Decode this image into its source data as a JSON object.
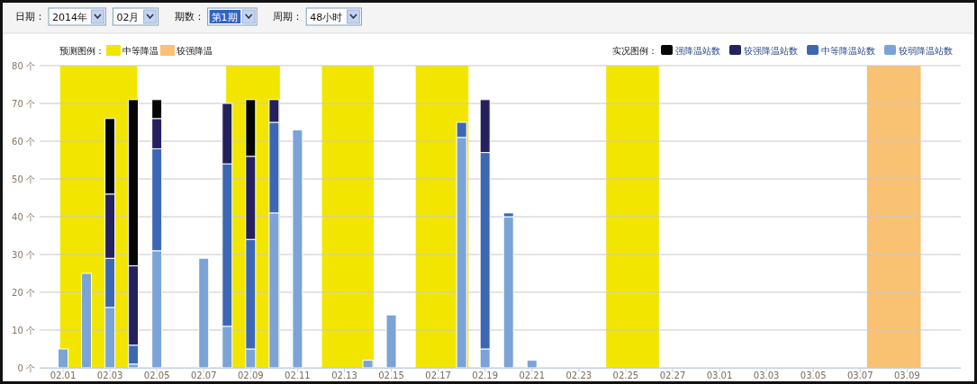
{
  "chart_data": {
    "type": "bar",
    "stacked": true,
    "x": [
      "2014-02-01",
      "2014-02-02",
      "2014-02-03",
      "2014-02-04",
      "2014-02-05",
      "2014-02-07",
      "2014-02-08",
      "2014-02-09",
      "2014-02-10",
      "2014-02-11",
      "2014-02-14",
      "2014-02-15",
      "2014-02-18",
      "2014-02-19",
      "2014-02-20",
      "2014-02-21"
    ],
    "series": [
      {
        "name": "较弱降温站数",
        "color": "#7ba3d6",
        "values": [
          5,
          25,
          16,
          1,
          31,
          29,
          11,
          5,
          41,
          63,
          2,
          14,
          61,
          5,
          40,
          2
        ]
      },
      {
        "name": "中等降温站数",
        "color": "#3c68b3",
        "values": [
          null,
          null,
          13,
          5,
          27,
          null,
          43,
          29,
          24,
          null,
          null,
          null,
          4,
          52,
          1,
          null
        ]
      },
      {
        "name": "较强降温站数",
        "color": "#24215e",
        "values": [
          null,
          null,
          17,
          21,
          8,
          null,
          16,
          22,
          6,
          null,
          null,
          null,
          null,
          14,
          null,
          null
        ]
      },
      {
        "name": "强降温站数",
        "color": "#030603",
        "values": [
          null,
          null,
          20,
          44,
          5,
          null,
          null,
          15,
          null,
          null,
          null,
          null,
          null,
          null,
          null,
          null
        ]
      }
    ],
    "xlim": [
      "2014-01-31",
      "2014-03-11T07:00"
    ],
    "xticks": [
      {
        "value": "2014-02-01",
        "label": "02.01"
      },
      {
        "value": "2014-02-03",
        "label": "02.03"
      },
      {
        "value": "2014-02-05",
        "label": "02.05"
      },
      {
        "value": "2014-02-07",
        "label": "02.07"
      },
      {
        "value": "2014-02-09",
        "label": "02.09"
      },
      {
        "value": "2014-02-11",
        "label": "02.11"
      },
      {
        "value": "2014-02-13",
        "label": "02.13"
      },
      {
        "value": "2014-02-15",
        "label": "02.15"
      },
      {
        "value": "2014-02-17",
        "label": "02.17"
      },
      {
        "value": "2014-02-19",
        "label": "02.19"
      },
      {
        "value": "2014-02-21",
        "label": "02.21"
      },
      {
        "value": "2014-02-23",
        "label": "02.23"
      },
      {
        "value": "2014-02-25",
        "label": "02.25"
      },
      {
        "value": "2014-02-27",
        "label": "02.27"
      },
      {
        "value": "2014-03-01",
        "label": "03.01"
      },
      {
        "value": "2014-03-03",
        "label": "03.03"
      },
      {
        "value": "2014-03-05",
        "label": "03.05"
      },
      {
        "value": "2014-03-07",
        "label": "03.07"
      },
      {
        "value": "2014-03-09",
        "label": "03.09"
      }
    ],
    "ylim": [
      0,
      80
    ],
    "yticks": [
      {
        "value": 0,
        "label": "0 个"
      },
      {
        "value": 10,
        "label": "10 个"
      },
      {
        "value": 20,
        "label": "20 个"
      },
      {
        "value": 30,
        "label": "30 个"
      },
      {
        "value": 40,
        "label": "40 个"
      },
      {
        "value": 50,
        "label": "50 个"
      },
      {
        "value": 60,
        "label": "60 个"
      },
      {
        "value": 70,
        "label": "70 个"
      },
      {
        "value": 80,
        "label": "80 个"
      }
    ],
    "grid": "y",
    "legend": "top right",
    "legend_title": "实况图例：",
    "bands": [
      {
        "axis": "x",
        "from": "2014-01-31T21:00",
        "to": "2014-02-04T04:00",
        "label": "中等降温",
        "color": "#f2e600"
      },
      {
        "axis": "x",
        "from": "2014-02-07T23:00",
        "to": "2014-02-10T06:00",
        "color": "#f2e600"
      },
      {
        "axis": "x",
        "from": "2014-02-12T01:00",
        "to": "2014-02-14T06:00",
        "color": "#f2e600"
      },
      {
        "axis": "x",
        "from": "2014-02-16T01:00",
        "to": "2014-02-18T07:00",
        "color": "#f2e600"
      },
      {
        "axis": "x",
        "from": "2014-02-24T04:00",
        "to": "2014-02-26T10:00",
        "color": "#f2e600"
      },
      {
        "axis": "x",
        "from": "2014-03-07T07:00",
        "to": "2014-03-09T14:00",
        "label": "较强降温",
        "color": "#f9c172"
      }
    ],
    "annotations": [
      "预测图例：",
      "日期：",
      "2014年",
      "02月",
      "期数：",
      "第1期",
      "周期：",
      "48小时"
    ]
  }
}
